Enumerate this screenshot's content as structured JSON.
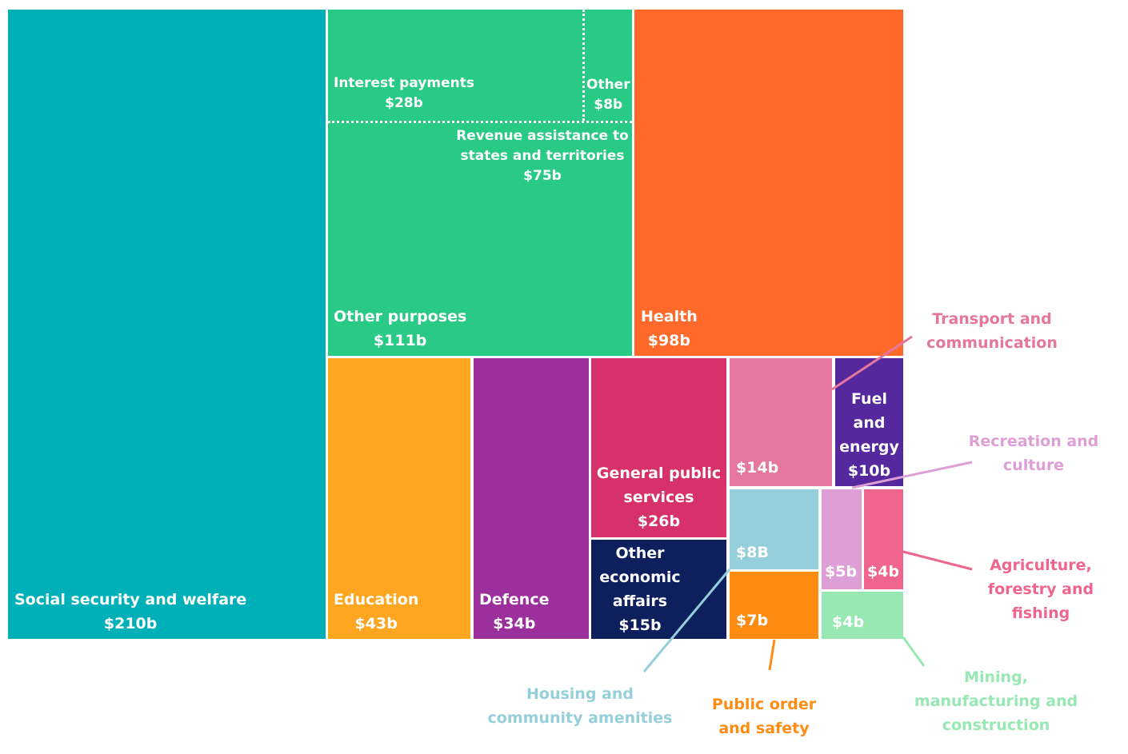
{
  "chart_data": {
    "type": "treemap",
    "items": [
      {
        "name": "Social security and welfare",
        "value": 210,
        "value_label": "$210b",
        "color": "#00b0b9"
      },
      {
        "name": "Other purposes",
        "value": 111,
        "value_label": "$111b",
        "color": "#29c986",
        "children": [
          {
            "name": "Interest payments",
            "value": 28,
            "value_label": "$28b"
          },
          {
            "name": "Other",
            "value": 8,
            "value_label": "$8b"
          },
          {
            "name": "Revenue assistance to states and territories",
            "value": 75,
            "value_label": "$75b"
          }
        ]
      },
      {
        "name": "Health",
        "value": 98,
        "value_label": "$98b",
        "color": "#ff6a2a"
      },
      {
        "name": "Education",
        "value": 43,
        "value_label": "$43b",
        "color": "#ffa620"
      },
      {
        "name": "Defence",
        "value": 34,
        "value_label": "$34b",
        "color": "#9b2f9b"
      },
      {
        "name": "General public services",
        "value": 26,
        "value_label": "$26b",
        "color": "#d7316b"
      },
      {
        "name": "Other economic affairs",
        "value": 15,
        "value_label": "$15b",
        "color": "#0d1f5c"
      },
      {
        "name": "Transport and communication",
        "value": 14,
        "value_label": "$14b",
        "color": "#e5769e"
      },
      {
        "name": "Fuel and energy",
        "value": 10,
        "value_label": "$10b",
        "color": "#55299d"
      },
      {
        "name": "Housing and community amenities",
        "value": 8,
        "value_label": "$8B",
        "color": "#96cfdc"
      },
      {
        "name": "Public order and safety",
        "value": 7,
        "value_label": "$7b",
        "color": "#ff8c12"
      },
      {
        "name": "Recreation and culture",
        "value": 5,
        "value_label": "$5b",
        "color": "#de9ed6"
      },
      {
        "name": "Agriculture, forestry and fishing",
        "value": 4,
        "value_label": "$4b",
        "color": "#f0658d"
      },
      {
        "name": "Mining, manufacturing and construction",
        "value": 4,
        "value_label": "$4b",
        "color": "#98e8b3"
      }
    ]
  }
}
